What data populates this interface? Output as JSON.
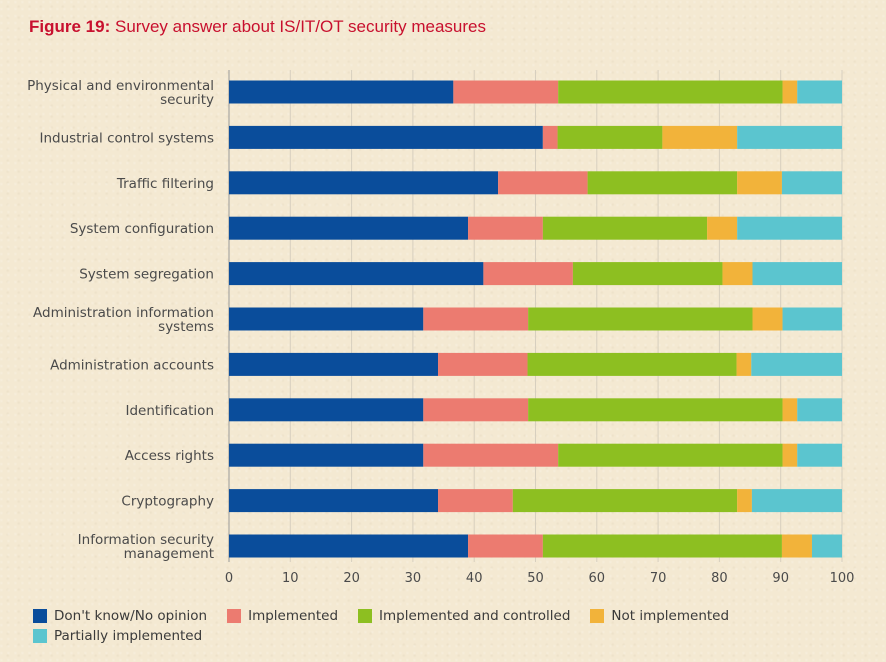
{
  "figure": {
    "label": "Figure 19:",
    "title": "Survey answer about IS/IT/OT security measures"
  },
  "chart_data": {
    "type": "bar",
    "orientation": "horizontal",
    "stacked": true,
    "categories": [
      "Physical and environmental security",
      "Industrial control systems",
      "Traffic filtering",
      "System configuration",
      "System segregation",
      "Administration information systems",
      "Administration accounts",
      "Identification",
      "Access rights",
      "Cryptography",
      "Information security management"
    ],
    "category_lines": [
      [
        "Physical and environmental",
        "security"
      ],
      [
        "Industrial control systems"
      ],
      [
        "Traffic filtering"
      ],
      [
        "System configuration"
      ],
      [
        "System segregation"
      ],
      [
        "Administration information",
        "systems"
      ],
      [
        "Administration accounts"
      ],
      [
        "Identification"
      ],
      [
        "Access rights"
      ],
      [
        "Cryptography"
      ],
      [
        "Information security",
        "management"
      ]
    ],
    "series": [
      {
        "name": "Don't know/No opinion",
        "color": "#0a4d9b",
        "values": [
          36.6,
          51.2,
          43.9,
          39.0,
          41.5,
          31.7,
          34.1,
          31.7,
          31.7,
          34.1,
          39.0
        ]
      },
      {
        "name": "Implemented",
        "color": "#ec7b70",
        "values": [
          17.1,
          2.4,
          14.6,
          12.2,
          14.6,
          17.1,
          14.6,
          17.1,
          22.0,
          12.2,
          12.2
        ]
      },
      {
        "name": "Implemented and controlled",
        "color": "#8dbf21",
        "values": [
          36.6,
          17.1,
          24.4,
          26.8,
          24.4,
          36.6,
          34.1,
          41.5,
          36.6,
          36.6,
          39.0
        ]
      },
      {
        "name": "Not implemented",
        "color": "#f2b33a",
        "values": [
          2.4,
          12.2,
          7.3,
          4.9,
          4.9,
          4.9,
          2.4,
          2.4,
          2.4,
          2.4,
          4.9
        ]
      },
      {
        "name": "Partially implemented",
        "color": "#5bc5cf",
        "values": [
          7.3,
          17.1,
          9.8,
          17.1,
          14.6,
          9.7,
          14.8,
          7.3,
          7.3,
          14.7,
          4.9
        ]
      }
    ],
    "xlim": [
      0,
      100
    ],
    "xticks": [
      0,
      10,
      20,
      30,
      40,
      50,
      60,
      70,
      80,
      90,
      100
    ],
    "xlabel": "",
    "ylabel": "",
    "grid": true,
    "legend_position": "bottom-left"
  }
}
